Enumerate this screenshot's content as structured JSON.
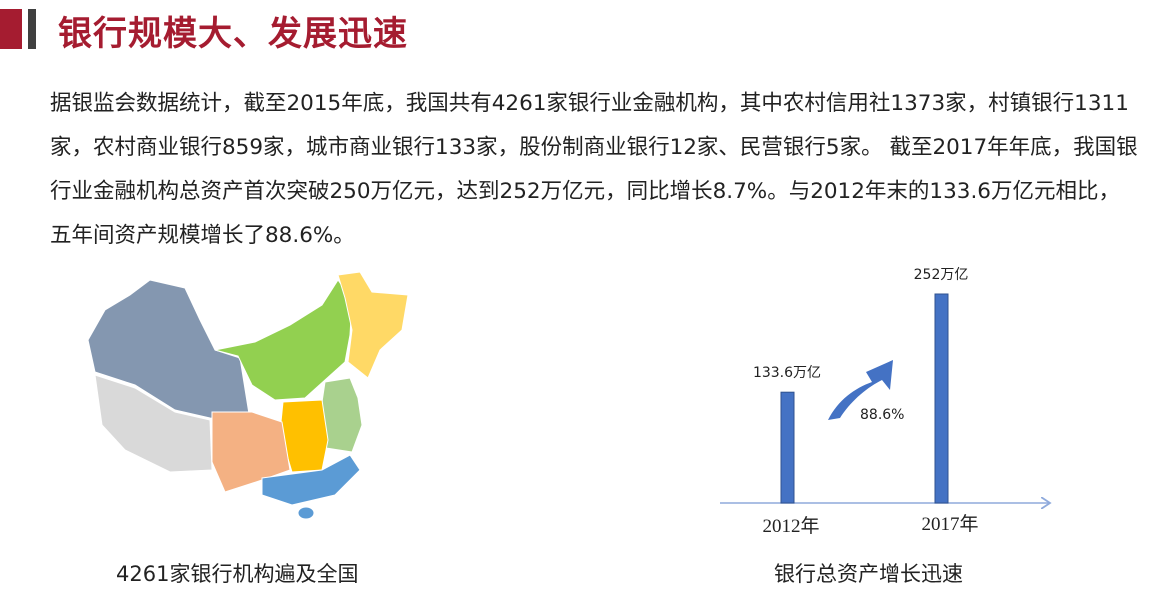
{
  "header": {
    "title": "银行规模大、发展迅速",
    "accent_color": "#a51c30"
  },
  "body_text": "据银监会数据统计，截至2015年底，我国共有4261家银行业金融机构，其中农村信用社1373家，村镇银行1311家，农村商业银行859家，城市商业银行133家，股份制商业银行12家、民营银行5家。 截至2017年年底，我国银行业金融机构总资产首次突破250万亿元，达到252万亿元，同比增长8.7%。与2012年末的133.6万亿元相比，五年间资产规模增长了88.6%。",
  "map": {
    "caption": "4261家银行机构遍及全国"
  },
  "chart_data": {
    "type": "bar",
    "categories": [
      "2012年",
      "2017年"
    ],
    "values": [
      133.6,
      252
    ],
    "data_labels": [
      "133.6万亿",
      "252万亿"
    ],
    "annotation": "88.6%",
    "caption": "银行总资产增长迅速",
    "bar_color": "#4472c4"
  }
}
